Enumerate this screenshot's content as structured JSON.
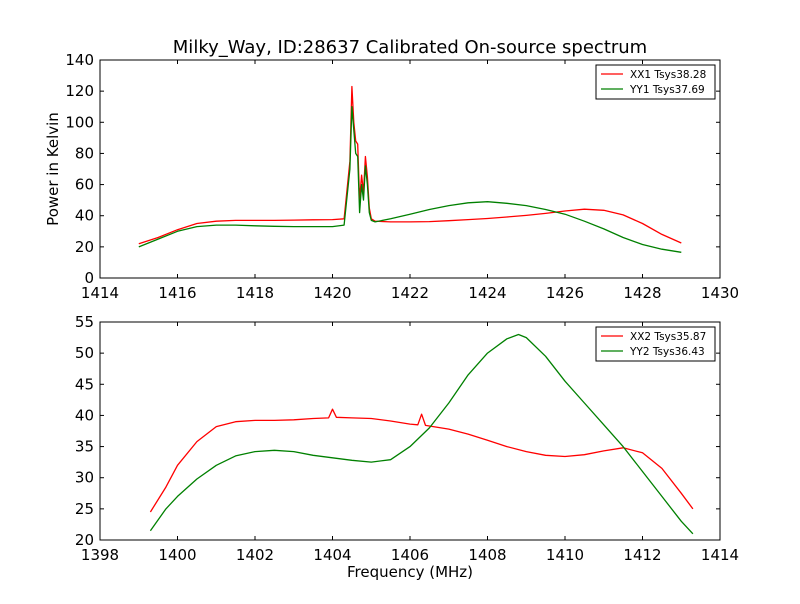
{
  "figure_title": "Milky_Way, ID:28637 Calibrated On-source spectrum",
  "colors": {
    "xx": "#ff0000",
    "yy": "#008000",
    "axes": "#000000",
    "background": "#ffffff"
  },
  "chart_data": [
    {
      "type": "line",
      "title": "Milky_Way, ID:28637 Calibrated On-source spectrum",
      "xlabel": "",
      "ylabel": "Power in Kelvin",
      "xlim": [
        1414,
        1430
      ],
      "ylim": [
        0,
        140
      ],
      "xticks": [
        "1414",
        "1416",
        "1418",
        "1420",
        "1422",
        "1424",
        "1426",
        "1428",
        "1430"
      ],
      "yticks": [
        "0",
        "20",
        "40",
        "60",
        "80",
        "100",
        "120",
        "140"
      ],
      "grid": false,
      "legend_position": "top-right",
      "series": [
        {
          "name": "XX1 Tsys38.28",
          "color": "#ff0000",
          "x": [
            1415.0,
            1415.5,
            1416.0,
            1416.5,
            1417.0,
            1417.5,
            1418.0,
            1418.5,
            1419.0,
            1419.5,
            1420.0,
            1420.3,
            1420.45,
            1420.5,
            1420.55,
            1420.6,
            1420.65,
            1420.7,
            1420.75,
            1420.8,
            1420.85,
            1420.9,
            1420.95,
            1421.0,
            1421.1,
            1421.5,
            1422.0,
            1422.5,
            1423.0,
            1423.5,
            1424.0,
            1424.5,
            1425.0,
            1425.5,
            1426.0,
            1426.5,
            1427.0,
            1427.5,
            1428.0,
            1428.5,
            1429.0
          ],
          "y": [
            22,
            26,
            31,
            35,
            36.5,
            37,
            37,
            37,
            37.2,
            37.4,
            37.5,
            38,
            75,
            123,
            100,
            88,
            86,
            50,
            66,
            55,
            78,
            65,
            45,
            38,
            36.5,
            36,
            36,
            36.2,
            36.8,
            37.5,
            38.2,
            39.2,
            40.2,
            41.5,
            43,
            44.2,
            43.5,
            40.5,
            35,
            28,
            22.5
          ]
        },
        {
          "name": "YY1 Tsys37.69",
          "color": "#008000",
          "x": [
            1415.0,
            1415.5,
            1416.0,
            1416.5,
            1417.0,
            1417.5,
            1418.0,
            1418.5,
            1419.0,
            1419.5,
            1420.0,
            1420.3,
            1420.45,
            1420.5,
            1420.55,
            1420.6,
            1420.65,
            1420.7,
            1420.75,
            1420.8,
            1420.85,
            1420.9,
            1420.95,
            1421.0,
            1421.1,
            1421.5,
            1422.0,
            1422.5,
            1423.0,
            1423.5,
            1424.0,
            1424.5,
            1425.0,
            1425.5,
            1426.0,
            1426.5,
            1427.0,
            1427.5,
            1428.0,
            1428.5,
            1429.0
          ],
          "y": [
            20,
            25,
            30,
            33,
            34,
            34,
            33.5,
            33.2,
            33,
            33,
            33,
            34,
            70,
            110,
            95,
            80,
            78,
            42,
            60,
            50,
            72,
            60,
            42,
            37,
            36,
            38,
            41,
            44,
            46.5,
            48.3,
            49,
            48,
            46.5,
            44,
            41,
            36.5,
            31.5,
            26,
            21.5,
            18.5,
            16.5
          ]
        }
      ]
    },
    {
      "type": "line",
      "title": "",
      "xlabel": "Frequency (MHz)",
      "ylabel": "",
      "xlim": [
        1398,
        1414
      ],
      "ylim": [
        20,
        55
      ],
      "xticks": [
        "1398",
        "1400",
        "1402",
        "1404",
        "1406",
        "1408",
        "1410",
        "1412",
        "1414"
      ],
      "yticks": [
        "20",
        "25",
        "30",
        "35",
        "40",
        "45",
        "50",
        "55"
      ],
      "grid": false,
      "legend_position": "top-right",
      "series": [
        {
          "name": "XX2 Tsys35.87",
          "color": "#ff0000",
          "x": [
            1399.3,
            1399.7,
            1400.0,
            1400.5,
            1401.0,
            1401.5,
            1402.0,
            1402.5,
            1403.0,
            1403.5,
            1403.9,
            1404.0,
            1404.1,
            1404.5,
            1405.0,
            1405.5,
            1406.0,
            1406.2,
            1406.3,
            1406.4,
            1407.0,
            1407.5,
            1408.0,
            1408.5,
            1409.0,
            1409.5,
            1410.0,
            1410.5,
            1411.0,
            1411.5,
            1412.0,
            1412.5,
            1413.0,
            1413.3
          ],
          "y": [
            24.5,
            28.5,
            32,
            35.8,
            38.2,
            39,
            39.2,
            39.2,
            39.3,
            39.5,
            39.6,
            41,
            39.7,
            39.6,
            39.5,
            39.1,
            38.6,
            38.5,
            40.2,
            38.4,
            37.8,
            37,
            36,
            35,
            34.2,
            33.6,
            33.4,
            33.7,
            34.3,
            34.8,
            34,
            31.5,
            27.5,
            25
          ]
        },
        {
          "name": "YY2 Tsys36.43",
          "color": "#008000",
          "x": [
            1399.3,
            1399.7,
            1400.0,
            1400.5,
            1401.0,
            1401.5,
            1402.0,
            1402.5,
            1403.0,
            1403.5,
            1404.0,
            1404.5,
            1405.0,
            1405.5,
            1406.0,
            1406.5,
            1407.0,
            1407.5,
            1408.0,
            1408.5,
            1408.8,
            1409.0,
            1409.5,
            1410.0,
            1410.5,
            1411.0,
            1411.5,
            1412.0,
            1412.5,
            1413.0,
            1413.3
          ],
          "y": [
            21.5,
            25,
            27,
            29.8,
            32,
            33.5,
            34.2,
            34.4,
            34.2,
            33.6,
            33.2,
            32.8,
            32.5,
            32.9,
            35,
            38,
            42,
            46.5,
            50,
            52.3,
            53,
            52.5,
            49.5,
            45.5,
            42,
            38.5,
            35,
            31,
            27,
            23,
            21
          ]
        }
      ]
    }
  ]
}
